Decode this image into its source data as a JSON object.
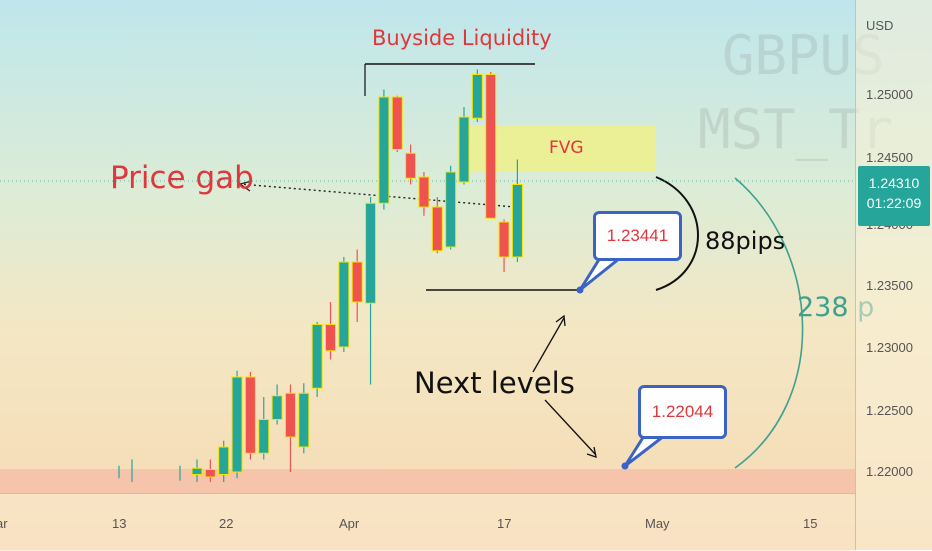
{
  "chart_data": {
    "type": "candlestick",
    "symbol_watermark": [
      "GBPUS",
      "MST_Tr"
    ],
    "currency": "USD",
    "y_ticks": [
      "1.25000",
      "1.24500",
      "1.24000",
      "1.23500",
      "1.23000",
      "1.22500",
      "1.22000"
    ],
    "x_ticks": [
      "ar",
      "13",
      "22",
      "Apr",
      "17",
      "May",
      "15"
    ],
    "current_price": "1.24310",
    "countdown": "01:22:09",
    "ylim": [
      1.2192,
      1.256
    ],
    "candles": [
      {
        "o": 1.2198,
        "h": 1.221,
        "l": 1.2192,
        "c": 1.2203
      },
      {
        "o": 1.2202,
        "h": 1.221,
        "l": 1.2192,
        "c": 1.2196
      },
      {
        "o": 1.2198,
        "h": 1.2225,
        "l": 1.2192,
        "c": 1.222
      },
      {
        "o": 1.22,
        "h": 1.2281,
        "l": 1.2195,
        "c": 1.2276
      },
      {
        "o": 1.2276,
        "h": 1.228,
        "l": 1.221,
        "c": 1.2215
      },
      {
        "o": 1.2215,
        "h": 1.226,
        "l": 1.221,
        "c": 1.2242
      },
      {
        "o": 1.2242,
        "h": 1.227,
        "l": 1.2238,
        "c": 1.2261
      },
      {
        "o": 1.2263,
        "h": 1.227,
        "l": 1.22,
        "c": 1.2228
      },
      {
        "o": 1.222,
        "h": 1.2271,
        "l": 1.2215,
        "c": 1.2263
      },
      {
        "o": 1.2267,
        "h": 1.232,
        "l": 1.226,
        "c": 1.2318
      },
      {
        "o": 1.2318,
        "h": 1.2336,
        "l": 1.229,
        "c": 1.2297
      },
      {
        "o": 1.23,
        "h": 1.2372,
        "l": 1.2296,
        "c": 1.2368
      },
      {
        "o": 1.2368,
        "h": 1.2378,
        "l": 1.232,
        "c": 1.2336
      },
      {
        "o": 1.2335,
        "h": 1.242,
        "l": 1.227,
        "c": 1.2415
      },
      {
        "o": 1.2415,
        "h": 1.2506,
        "l": 1.241,
        "c": 1.25
      },
      {
        "o": 1.25,
        "h": 1.2501,
        "l": 1.2456,
        "c": 1.2458
      },
      {
        "o": 1.2455,
        "h": 1.2462,
        "l": 1.243,
        "c": 1.2435
      },
      {
        "o": 1.2436,
        "h": 1.244,
        "l": 1.2405,
        "c": 1.2412
      },
      {
        "o": 1.2412,
        "h": 1.242,
        "l": 1.2375,
        "c": 1.2377
      },
      {
        "o": 1.238,
        "h": 1.2445,
        "l": 1.2378,
        "c": 1.244
      },
      {
        "o": 1.2432,
        "h": 1.2492,
        "l": 1.243,
        "c": 1.2484
      },
      {
        "o": 1.2483,
        "h": 1.2522,
        "l": 1.248,
        "c": 1.2518
      },
      {
        "o": 1.2518,
        "h": 1.252,
        "l": 1.2403,
        "c": 1.2403
      },
      {
        "o": 1.24,
        "h": 1.2402,
        "l": 1.236,
        "c": 1.2372
      },
      {
        "o": 1.2372,
        "h": 1.245,
        "l": 1.2368,
        "c": 1.243
      }
    ],
    "annotations": {
      "buyside": "Buyside Liquidity",
      "fvg": "FVG",
      "price_gap": "Price gab",
      "pips_88": "88pips",
      "pips_238": "238 p",
      "next_levels": "Next levels",
      "level1": "1.23441",
      "level2": "1.22044"
    }
  },
  "colors": {
    "up": "#26a69a",
    "down": "#ef5350",
    "border": "#f5e400",
    "fvg": "#eef08a",
    "zone": "#f6c0a8",
    "accent_red": "#e0373c",
    "teal_text": "#3fa08f",
    "callout_border": "#3b63c4"
  }
}
